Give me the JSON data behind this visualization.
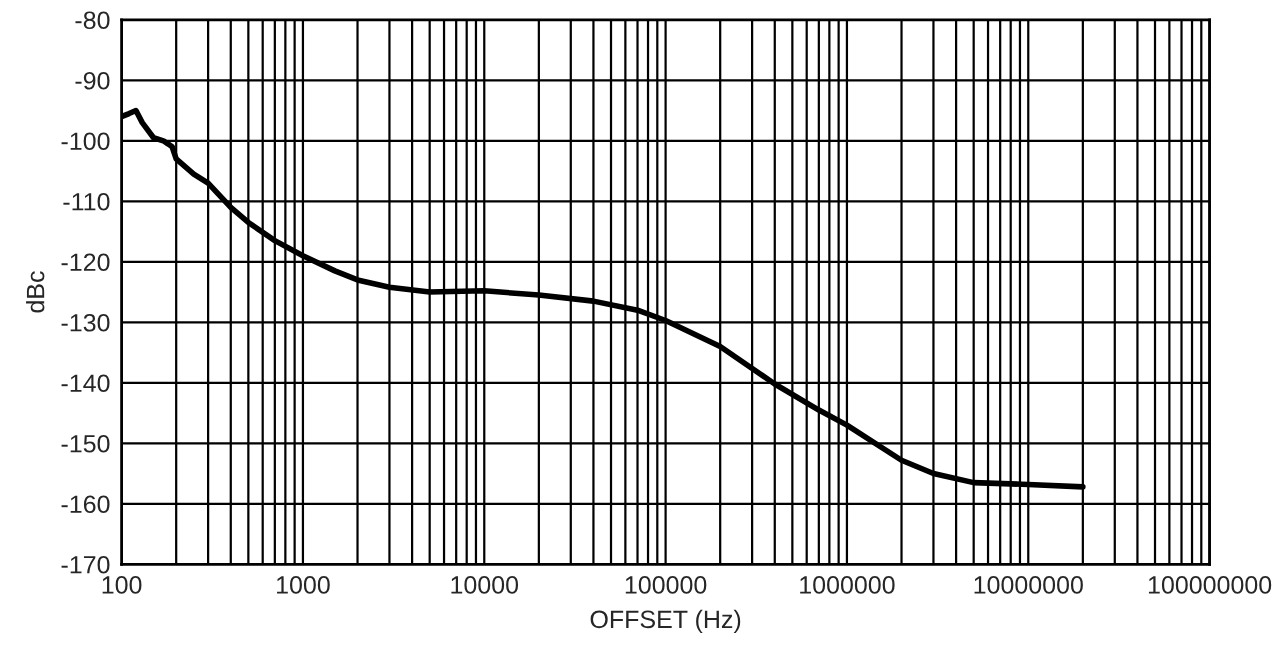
{
  "chart_data": {
    "type": "line",
    "xlabel": "OFFSET (Hz)",
    "ylabel": "dBc",
    "x": [
      100,
      110,
      120,
      130,
      150,
      170,
      180,
      190,
      200,
      250,
      300,
      400,
      500,
      700,
      1000,
      1500,
      2000,
      3000,
      5000,
      10000,
      20000,
      40000,
      70000,
      100000,
      200000,
      400000,
      700000,
      1000000,
      2000000,
      3000000,
      5000000,
      10000000,
      20000000
    ],
    "series": [
      {
        "color": "#000000",
        "values": [
          -96,
          -95.5,
          -95,
          -97,
          -99.5,
          -100,
          -100.5,
          -101,
          -103,
          -105.5,
          -107,
          -111,
          -113.5,
          -116.5,
          -119,
          -121.5,
          -123,
          -124.2,
          -125,
          -124.8,
          -125.5,
          -126.5,
          -128,
          -129.7,
          -134,
          -140.2,
          -144.5,
          -147,
          -152.8,
          -155,
          -156.5,
          -156.8,
          -157.2
        ]
      }
    ],
    "log": "x",
    "xlim": [
      100,
      100000000
    ],
    "ylim": [
      -170,
      -80
    ],
    "xticks": [
      100,
      1000,
      10000,
      100000,
      1000000,
      10000000,
      100000000
    ],
    "yticks": [
      -170,
      -160,
      -150,
      -140,
      -130,
      -120,
      -110,
      -100,
      -90,
      -80
    ],
    "grid": true,
    "marker": "none",
    "line_style": "solid"
  }
}
